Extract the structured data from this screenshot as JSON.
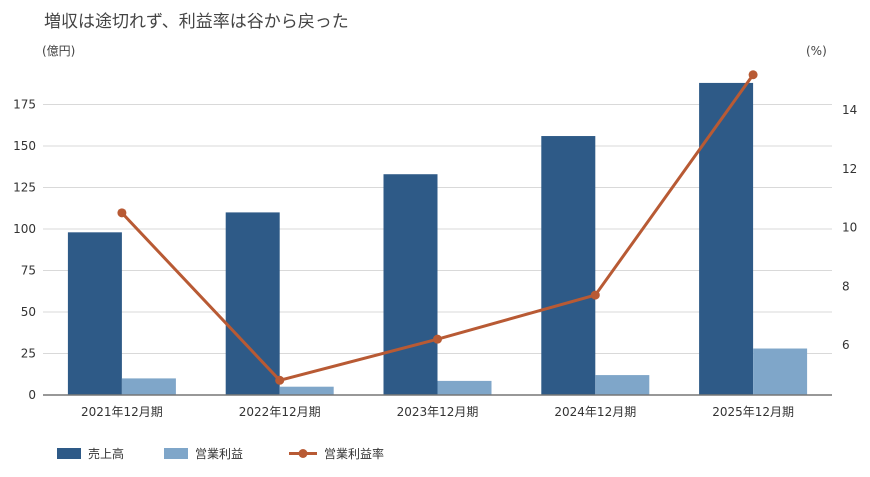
{
  "chart_data": {
    "type": "bar",
    "title": "増収は途切れず、利益率は谷から戻った",
    "y_left_unit": "(億円)",
    "y_right_unit": "(%)",
    "categories": [
      "2021年12月期",
      "2022年12月期",
      "2023年12月期",
      "2024年12月期",
      "2025年12月期"
    ],
    "series": [
      {
        "name": "売上高",
        "type": "bar",
        "axis": "left",
        "color": "#2e5a87",
        "values": [
          98,
          110,
          133,
          156,
          188
        ]
      },
      {
        "name": "営業利益",
        "type": "bar",
        "axis": "left",
        "color": "#7fa6c9",
        "values": [
          10,
          5,
          8.5,
          12,
          28
        ]
      },
      {
        "name": "営業利益率",
        "type": "line",
        "axis": "right",
        "color": "#b85a34",
        "values": [
          10.5,
          4.8,
          6.2,
          7.7,
          15.2
        ]
      }
    ],
    "y_left_ticks": [
      0,
      25,
      50,
      75,
      100,
      125,
      150,
      175
    ],
    "y_left_range": [
      0,
      200
    ],
    "y_right_ticks": [
      6,
      8,
      10,
      12,
      14
    ],
    "y_right_range": [
      4.3,
      15.6
    ],
    "grid": true,
    "legend_position": "bottom-left"
  }
}
